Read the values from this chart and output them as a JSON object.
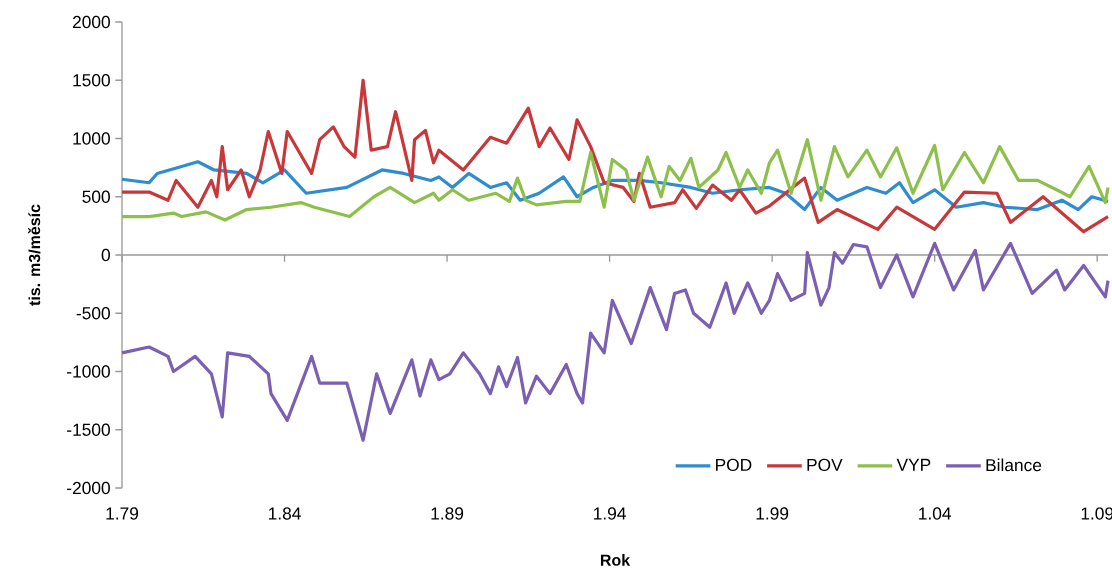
{
  "chart_data": {
    "type": "line",
    "xlabel": "Rok",
    "ylabel": "tis. m3/měsíc",
    "xlim": [
      "1979-01",
      "2009-05"
    ],
    "ylim": [
      -2000,
      2000
    ],
    "xticks": [
      {
        "value": "1979-01",
        "label": "1.79"
      },
      {
        "value": "1984-01",
        "label": "1.84"
      },
      {
        "value": "1989-01",
        "label": "1.89"
      },
      {
        "value": "1994-01",
        "label": "1.94"
      },
      {
        "value": "1999-01",
        "label": "1.99"
      },
      {
        "value": "2004-01",
        "label": "1.04"
      },
      {
        "value": "2009-01",
        "label": "1.09"
      }
    ],
    "yticks": [
      -2000,
      -1500,
      -1000,
      -500,
      0,
      500,
      1000,
      1500,
      2000
    ],
    "legend": "bottom right",
    "series": [
      {
        "name": "POD",
        "color": "#2e8ccf",
        "x": [
          "1979-01",
          "1979-11",
          "1980-02",
          "1980-11",
          "1981-05",
          "1981-11",
          "1982-11",
          "1983-05",
          "1984-01",
          "1984-09",
          "1985-12",
          "1987-01",
          "1987-09",
          "1988-07",
          "1988-10",
          "1989-03",
          "1989-09",
          "1990-05",
          "1990-11",
          "1991-04",
          "1991-11",
          "1992-08",
          "1993-01",
          "1993-07",
          "1994-02",
          "1994-12",
          "1995-08",
          "1996-07",
          "1997-03",
          "1998-01",
          "1998-12",
          "1999-06",
          "2000-01",
          "2000-07",
          "2001-01",
          "2001-12",
          "2002-07",
          "2002-12",
          "2003-05",
          "2004-01",
          "2004-09",
          "2005-07",
          "2006-03",
          "2007-03",
          "2007-12",
          "2008-06",
          "2008-11",
          "2009-05"
        ],
        "values": [
          650,
          620,
          700,
          760,
          800,
          730,
          700,
          620,
          730,
          530,
          580,
          730,
          700,
          640,
          670,
          580,
          700,
          580,
          620,
          470,
          530,
          670,
          500,
          580,
          640,
          640,
          620,
          580,
          530,
          560,
          580,
          530,
          390,
          580,
          470,
          580,
          530,
          620,
          450,
          560,
          410,
          450,
          410,
          390,
          470,
          390,
          500,
          460
        ]
      },
      {
        "name": "POV",
        "color": "#c8373a",
        "x": [
          "1979-01",
          "1979-11",
          "1980-06",
          "1980-09",
          "1981-05",
          "1981-10",
          "1981-12",
          "1982-02",
          "1982-04",
          "1982-09",
          "1982-12",
          "1983-04",
          "1983-07",
          "1983-12",
          "1984-02",
          "1984-11",
          "1985-02",
          "1985-07",
          "1985-11",
          "1986-03",
          "1986-06",
          "1986-09",
          "1987-03",
          "1987-06",
          "1987-12",
          "1988-01",
          "1988-05",
          "1988-08",
          "1988-10",
          "1989-07",
          "1990-05",
          "1990-11",
          "1991-07",
          "1991-11",
          "1992-03",
          "1992-10",
          "1993-01",
          "1993-06",
          "1993-11",
          "1994-06",
          "1994-10",
          "1994-12",
          "1995-04",
          "1996-01",
          "1996-04",
          "1996-09",
          "1997-03",
          "1997-10",
          "1998-01",
          "1998-07",
          "1998-12",
          "2000-01",
          "2000-06",
          "2001-01",
          "2002-04",
          "2002-11",
          "2004-01",
          "2004-12",
          "2005-12",
          "2006-05",
          "2007-05",
          "2008-08",
          "2009-05"
        ],
        "values": [
          540,
          540,
          470,
          640,
          410,
          640,
          500,
          930,
          560,
          730,
          500,
          730,
          1060,
          700,
          1060,
          700,
          990,
          1100,
          930,
          840,
          1500,
          900,
          930,
          1230,
          640,
          990,
          1070,
          790,
          900,
          730,
          1010,
          960,
          1260,
          930,
          1090,
          820,
          1160,
          930,
          620,
          580,
          460,
          700,
          410,
          450,
          560,
          400,
          600,
          470,
          560,
          360,
          420,
          660,
          280,
          390,
          220,
          410,
          220,
          540,
          530,
          280,
          500,
          200,
          330
        ]
      },
      {
        "name": "VYP",
        "color": "#8dc04a",
        "x": [
          "1979-01",
          "1979-11",
          "1980-08",
          "1980-11",
          "1981-08",
          "1982-03",
          "1982-11",
          "1983-08",
          "1984-07",
          "1984-12",
          "1986-01",
          "1986-10",
          "1987-04",
          "1988-01",
          "1988-08",
          "1988-10",
          "1989-03",
          "1989-09",
          "1990-07",
          "1990-12",
          "1991-03",
          "1991-06",
          "1991-10",
          "1992-09",
          "1993-02",
          "1993-06",
          "1993-11",
          "1994-02",
          "1994-07",
          "1994-10",
          "1995-03",
          "1995-08",
          "1995-11",
          "1996-03",
          "1996-07",
          "1996-10",
          "1997-05",
          "1997-08",
          "1998-01",
          "1998-04",
          "1998-09",
          "1998-12",
          "1999-03",
          "1999-08",
          "2000-02",
          "2000-07",
          "2000-12",
          "2001-05",
          "2001-12",
          "2002-05",
          "2002-11",
          "2003-05",
          "2004-01",
          "2004-04",
          "2004-12",
          "2005-07",
          "2006-01",
          "2006-08",
          "2007-03",
          "2007-10",
          "2008-03",
          "2008-10",
          "2009-04",
          "2009-05"
        ],
        "values": [
          330,
          330,
          360,
          330,
          370,
          300,
          390,
          410,
          450,
          410,
          330,
          500,
          580,
          450,
          530,
          470,
          560,
          470,
          530,
          460,
          660,
          470,
          430,
          460,
          460,
          880,
          410,
          820,
          730,
          470,
          840,
          500,
          760,
          640,
          830,
          580,
          730,
          880,
          580,
          730,
          530,
          790,
          900,
          530,
          990,
          470,
          930,
          670,
          900,
          670,
          920,
          530,
          940,
          560,
          880,
          620,
          930,
          640,
          640,
          560,
          500,
          760,
          450,
          580
        ]
      },
      {
        "name": "Bilance",
        "color": "#7b5fb3",
        "x": [
          "1979-01",
          "1979-11",
          "1980-06",
          "1980-08",
          "1981-04",
          "1981-10",
          "1982-02",
          "1982-04",
          "1982-12",
          "1983-07",
          "1983-08",
          "1984-02",
          "1984-11",
          "1985-02",
          "1985-12",
          "1986-06",
          "1986-11",
          "1987-04",
          "1987-12",
          "1988-03",
          "1988-07",
          "1988-10",
          "1989-02",
          "1989-07",
          "1990-01",
          "1990-05",
          "1990-08",
          "1990-11",
          "1991-03",
          "1991-06",
          "1991-10",
          "1992-03",
          "1992-09",
          "1993-01",
          "1993-03",
          "1993-06",
          "1993-11",
          "1994-02",
          "1994-09",
          "1995-04",
          "1995-10",
          "1996-01",
          "1996-05",
          "1996-08",
          "1997-02",
          "1997-08",
          "1997-11",
          "1998-04",
          "1998-09",
          "1998-12",
          "1999-03",
          "1999-08",
          "2000-01",
          "2000-02",
          "2000-07",
          "2000-10",
          "2000-12",
          "2001-03",
          "2001-07",
          "2001-12",
          "2002-05",
          "2002-11",
          "2003-05",
          "2004-01",
          "2004-08",
          "2005-04",
          "2005-07",
          "2006-05",
          "2007-01",
          "2007-10",
          "2008-01",
          "2008-08",
          "2009-04",
          "2009-05"
        ],
        "values": [
          -840,
          -790,
          -870,
          -1000,
          -870,
          -1020,
          -1390,
          -840,
          -870,
          -1020,
          -1190,
          -1420,
          -870,
          -1100,
          -1100,
          -1590,
          -1020,
          -1360,
          -900,
          -1210,
          -900,
          -1070,
          -1020,
          -840,
          -1020,
          -1190,
          -960,
          -1130,
          -880,
          -1270,
          -1040,
          -1190,
          -940,
          -1190,
          -1270,
          -670,
          -840,
          -390,
          -760,
          -280,
          -640,
          -330,
          -300,
          -500,
          -620,
          -240,
          -500,
          -240,
          -500,
          -390,
          -160,
          -390,
          -330,
          20,
          -430,
          -280,
          20,
          -70,
          90,
          70,
          -280,
          0,
          -360,
          100,
          -300,
          40,
          -300,
          100,
          -330,
          -130,
          -300,
          -90,
          -360,
          -220
        ]
      }
    ]
  }
}
